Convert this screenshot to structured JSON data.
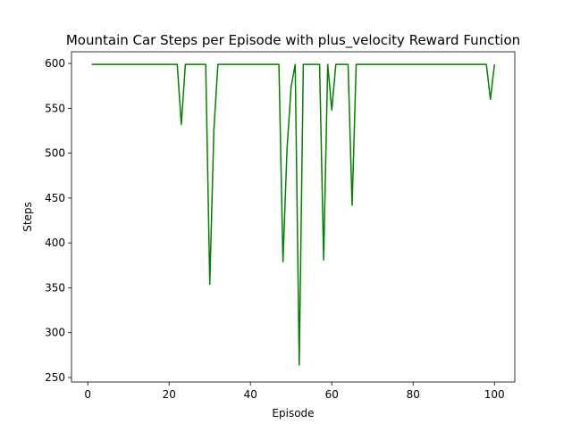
{
  "chart_data": {
    "type": "line",
    "title": "Mountain Car Steps per Episode with plus_velocity Reward Function",
    "xlabel": "Episode",
    "ylabel": "Steps",
    "xlim": [
      -4,
      105
    ],
    "ylim": [
      245,
      613
    ],
    "xticks": [
      0,
      20,
      40,
      60,
      80,
      100
    ],
    "yticks": [
      250,
      300,
      350,
      400,
      450,
      500,
      550,
      600
    ],
    "grid": false,
    "series": [
      {
        "color": "#008000",
        "x": [
          1,
          2,
          3,
          4,
          5,
          6,
          7,
          8,
          9,
          10,
          11,
          12,
          13,
          14,
          15,
          16,
          17,
          18,
          19,
          20,
          21,
          22,
          23,
          24,
          25,
          26,
          27,
          28,
          29,
          30,
          31,
          32,
          33,
          34,
          35,
          36,
          37,
          38,
          39,
          40,
          41,
          42,
          43,
          44,
          45,
          46,
          47,
          48,
          49,
          50,
          51,
          52,
          53,
          54,
          55,
          56,
          57,
          58,
          59,
          60,
          61,
          62,
          63,
          64,
          65,
          66,
          67,
          68,
          69,
          70,
          71,
          72,
          73,
          74,
          75,
          76,
          77,
          78,
          79,
          80,
          81,
          82,
          83,
          84,
          85,
          86,
          87,
          88,
          89,
          90,
          91,
          92,
          93,
          94,
          95,
          96,
          97,
          98,
          99,
          100
        ],
        "y": [
          599,
          599,
          599,
          599,
          599,
          599,
          599,
          599,
          599,
          599,
          599,
          599,
          599,
          599,
          599,
          599,
          599,
          599,
          599,
          599,
          599,
          599,
          532,
          599,
          599,
          599,
          599,
          599,
          599,
          354,
          525,
          599,
          599,
          599,
          599,
          599,
          599,
          599,
          599,
          599,
          599,
          599,
          599,
          599,
          599,
          599,
          599,
          379,
          505,
          574,
          599,
          264,
          599,
          599,
          599,
          599,
          599,
          381,
          599,
          548,
          599,
          599,
          599,
          599,
          442,
          599,
          599,
          599,
          599,
          599,
          599,
          599,
          599,
          599,
          599,
          599,
          599,
          599,
          599,
          599,
          599,
          599,
          599,
          599,
          599,
          599,
          599,
          599,
          599,
          599,
          599,
          599,
          599,
          599,
          599,
          599,
          599,
          599,
          560,
          599
        ]
      }
    ]
  }
}
